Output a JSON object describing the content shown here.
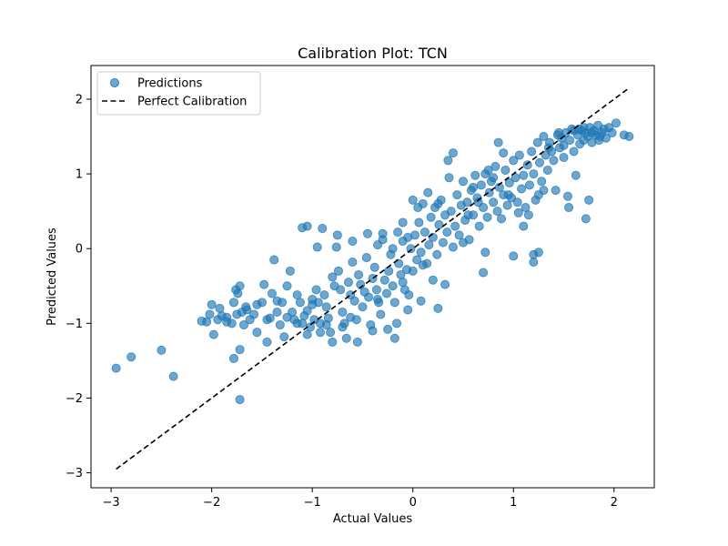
{
  "chart_data": {
    "type": "scatter",
    "title": "Calibration Plot: TCN",
    "xlabel": "Actual Values",
    "ylabel": "Predicted Values",
    "xlim": [
      -3.2,
      2.4
    ],
    "ylim": [
      -3.2,
      2.45
    ],
    "xticks": [
      -3,
      -2,
      -1,
      0,
      1,
      2
    ],
    "yticks": [
      -3,
      -2,
      -1,
      0,
      1,
      2
    ],
    "xtick_labels": [
      "−3",
      "−2",
      "−1",
      "0",
      "1",
      "2"
    ],
    "ytick_labels": [
      "−3",
      "−2",
      "−1",
      "0",
      "1",
      "2"
    ],
    "grid": false,
    "legend_position": "top-left",
    "legend": [
      "Predictions",
      "Perfect Calibration"
    ],
    "colors": {
      "points": "#1f77b4",
      "reference_line": "#000000"
    },
    "reference_line": {
      "name": "Perfect Calibration",
      "style": "dashed",
      "x": [
        -2.95,
        2.15
      ],
      "y": [
        -2.95,
        2.15
      ]
    },
    "series": [
      {
        "name": "Predictions",
        "points": [
          [
            -2.95,
            -1.6
          ],
          [
            -2.8,
            -1.45
          ],
          [
            -2.5,
            -1.36
          ],
          [
            -2.38,
            -1.71
          ],
          [
            -1.72,
            -2.02
          ],
          [
            -1.78,
            -1.47
          ],
          [
            -1.72,
            -1.35
          ],
          [
            -2.1,
            -0.97
          ],
          [
            -2.05,
            -0.98
          ],
          [
            -2.02,
            -0.88
          ],
          [
            -2.0,
            -0.75
          ],
          [
            -1.98,
            -1.15
          ],
          [
            -1.94,
            -0.95
          ],
          [
            -1.92,
            -0.8
          ],
          [
            -1.9,
            -0.9
          ],
          [
            -1.85,
            -0.92
          ],
          [
            -1.8,
            -1.0
          ],
          [
            -1.78,
            -0.72
          ],
          [
            -1.76,
            -0.55
          ],
          [
            -1.74,
            -0.6
          ],
          [
            -1.72,
            -0.5
          ],
          [
            -1.7,
            -0.85
          ],
          [
            -1.68,
            -1.02
          ],
          [
            -1.66,
            -0.78
          ],
          [
            -1.62,
            -0.95
          ],
          [
            -1.58,
            -0.88
          ],
          [
            -1.55,
            -1.12
          ],
          [
            -1.5,
            -0.72
          ],
          [
            -1.48,
            -0.48
          ],
          [
            -1.45,
            -1.25
          ],
          [
            -1.42,
            -0.93
          ],
          [
            -1.4,
            -0.6
          ],
          [
            -1.38,
            -0.15
          ],
          [
            -1.35,
            -0.7
          ],
          [
            -1.32,
            -1.02
          ],
          [
            -1.3,
            -0.72
          ],
          [
            -1.28,
            -1.18
          ],
          [
            -1.25,
            -0.5
          ],
          [
            -1.22,
            -0.3
          ],
          [
            -1.2,
            -0.85
          ],
          [
            -1.18,
            -0.95
          ],
          [
            -1.15,
            -0.62
          ],
          [
            -1.12,
            -0.72
          ],
          [
            -1.1,
            -1.0
          ],
          [
            -1.08,
            -0.9
          ],
          [
            -1.05,
            -0.83
          ],
          [
            -1.02,
            -1.05
          ],
          [
            -1.0,
            -0.68
          ],
          [
            -0.98,
            -0.95
          ],
          [
            -0.96,
            -0.55
          ],
          [
            -0.94,
            -0.72
          ],
          [
            -0.92,
            -1.0
          ],
          [
            -0.9,
            0.27
          ],
          [
            -0.88,
            -0.62
          ],
          [
            -0.86,
            -0.78
          ],
          [
            -0.84,
            -0.93
          ],
          [
            -0.82,
            -1.12
          ],
          [
            -0.8,
            -0.38
          ],
          [
            -0.78,
            -0.5
          ],
          [
            -0.76,
            0.02
          ],
          [
            -0.74,
            -0.3
          ],
          [
            -0.72,
            -0.55
          ],
          [
            -0.7,
            -0.85
          ],
          [
            -0.68,
            -1.0
          ],
          [
            -0.66,
            -1.2
          ],
          [
            -0.64,
            -0.45
          ],
          [
            -0.62,
            -0.62
          ],
          [
            -0.6,
            -0.18
          ],
          [
            -0.58,
            -0.7
          ],
          [
            -0.56,
            -0.95
          ],
          [
            -0.54,
            -0.35
          ],
          [
            -0.52,
            -0.48
          ],
          [
            -0.5,
            -0.78
          ],
          [
            -0.48,
            -0.58
          ],
          [
            -0.46,
            -0.12
          ],
          [
            -0.44,
            -0.65
          ],
          [
            -0.42,
            -1.02
          ],
          [
            -0.4,
            -0.4
          ],
          [
            -0.38,
            -0.25
          ],
          [
            -0.36,
            -0.55
          ],
          [
            -0.34,
            -0.72
          ],
          [
            -0.32,
            -0.88
          ],
          [
            -0.3,
            0.2
          ],
          [
            -0.28,
            -0.42
          ],
          [
            -0.26,
            -0.6
          ],
          [
            -0.24,
            -0.3
          ],
          [
            -0.22,
            -0.08
          ],
          [
            -0.2,
            -0.5
          ],
          [
            -0.18,
            -0.72
          ],
          [
            -0.16,
            -1.0
          ],
          [
            -0.14,
            -0.2
          ],
          [
            -0.12,
            -0.35
          ],
          [
            -0.1,
            0.1
          ],
          [
            -0.08,
            -0.55
          ],
          [
            -0.06,
            -0.28
          ],
          [
            -0.04,
            -0.62
          ],
          [
            -0.02,
            0.0
          ],
          [
            0.0,
            -0.3
          ],
          [
            0.02,
            0.18
          ],
          [
            0.04,
            -0.15
          ],
          [
            0.06,
            0.35
          ],
          [
            0.08,
            -0.05
          ],
          [
            0.1,
            0.6
          ],
          [
            0.12,
            0.22
          ],
          [
            0.14,
            -0.2
          ],
          [
            0.16,
            0.05
          ],
          [
            0.18,
            0.42
          ],
          [
            0.2,
            0.15
          ],
          [
            0.22,
            0.55
          ],
          [
            0.24,
            -0.08
          ],
          [
            0.26,
            0.32
          ],
          [
            0.28,
            0.65
          ],
          [
            0.3,
            0.08
          ],
          [
            0.32,
            0.45
          ],
          [
            0.34,
            0.22
          ],
          [
            0.36,
            0.95
          ],
          [
            0.38,
            0.5
          ],
          [
            0.4,
            0.02
          ],
          [
            0.42,
            0.3
          ],
          [
            0.44,
            0.72
          ],
          [
            0.46,
            0.18
          ],
          [
            0.48,
            0.58
          ],
          [
            0.5,
            0.9
          ],
          [
            0.52,
            0.38
          ],
          [
            0.54,
            0.62
          ],
          [
            0.56,
            0.12
          ],
          [
            0.58,
            0.78
          ],
          [
            0.6,
            0.45
          ],
          [
            0.62,
            0.98
          ],
          [
            0.64,
            0.68
          ],
          [
            0.66,
            0.3
          ],
          [
            0.68,
            0.85
          ],
          [
            0.7,
            0.55
          ],
          [
            0.72,
            1.0
          ],
          [
            0.74,
            0.42
          ],
          [
            0.76,
            0.75
          ],
          [
            0.78,
            0.9
          ],
          [
            0.8,
            0.62
          ],
          [
            0.82,
            1.1
          ],
          [
            0.84,
            0.5
          ],
          [
            0.86,
            0.82
          ],
          [
            0.88,
            0.4
          ],
          [
            0.9,
            0.72
          ],
          [
            0.92,
            1.05
          ],
          [
            0.94,
            0.58
          ],
          [
            0.96,
            0.88
          ],
          [
            0.98,
            0.68
          ],
          [
            1.0,
            1.18
          ],
          [
            1.02,
            0.95
          ],
          [
            1.04,
            0.62
          ],
          [
            1.06,
            1.25
          ],
          [
            1.08,
            0.8
          ],
          [
            1.1,
            0.98
          ],
          [
            1.12,
            0.55
          ],
          [
            1.14,
            1.12
          ],
          [
            1.16,
            0.85
          ],
          [
            1.18,
            1.3
          ],
          [
            1.2,
            1.0
          ],
          [
            1.22,
            0.65
          ],
          [
            1.24,
            1.42
          ],
          [
            1.26,
            1.15
          ],
          [
            1.28,
            0.9
          ],
          [
            1.3,
            1.5
          ],
          [
            1.32,
            1.25
          ],
          [
            1.34,
            1.05
          ],
          [
            1.36,
            1.42
          ],
          [
            1.38,
            1.3
          ],
          [
            1.4,
            1.18
          ],
          [
            1.42,
            0.78
          ],
          [
            1.44,
            1.52
          ],
          [
            1.46,
            1.35
          ],
          [
            1.48,
            1.48
          ],
          [
            1.5,
            1.22
          ],
          [
            1.52,
            1.55
          ],
          [
            1.54,
            0.7
          ],
          [
            1.56,
            1.45
          ],
          [
            1.58,
            1.6
          ],
          [
            1.6,
            1.3
          ],
          [
            1.62,
            0.98
          ],
          [
            1.64,
            1.52
          ],
          [
            1.66,
            1.4
          ],
          [
            1.68,
            1.58
          ],
          [
            1.7,
            1.45
          ],
          [
            1.72,
            1.55
          ],
          [
            1.74,
            1.5
          ],
          [
            1.76,
            1.62
          ],
          [
            1.78,
            1.42
          ],
          [
            1.8,
            1.58
          ],
          [
            1.82,
            1.52
          ],
          [
            1.84,
            1.65
          ],
          [
            1.86,
            1.5
          ],
          [
            1.88,
            1.55
          ],
          [
            1.9,
            1.6
          ],
          [
            1.92,
            1.48
          ],
          [
            1.95,
            1.62
          ],
          [
            1.98,
            1.55
          ],
          [
            2.02,
            1.68
          ],
          [
            2.1,
            1.52
          ],
          [
            2.15,
            1.5
          ],
          [
            1.72,
            0.4
          ],
          [
            1.75,
            0.65
          ],
          [
            1.2,
            -0.08
          ],
          [
            1.25,
            -0.05
          ],
          [
            1.2,
            -0.18
          ],
          [
            1.0,
            -0.1
          ],
          [
            0.7,
            -0.32
          ],
          [
            0.72,
            -0.05
          ],
          [
            0.5,
            0.08
          ],
          [
            0.32,
            -0.48
          ],
          [
            0.25,
            -0.8
          ],
          [
            0.2,
            -0.42
          ],
          [
            0.1,
            -0.22
          ],
          [
            0.08,
            -0.7
          ],
          [
            -0.05,
            -0.82
          ],
          [
            -0.1,
            -0.45
          ],
          [
            -0.18,
            -1.2
          ],
          [
            -0.25,
            -1.08
          ],
          [
            -0.35,
            -0.68
          ],
          [
            -0.4,
            -1.1
          ],
          [
            -0.55,
            -1.25
          ],
          [
            -0.62,
            -0.92
          ],
          [
            -0.7,
            -1.05
          ],
          [
            -0.8,
            -1.25
          ],
          [
            -0.86,
            -1.02
          ],
          [
            -0.92,
            -1.12
          ],
          [
            -1.0,
            -0.75
          ],
          [
            -1.05,
            -1.15
          ],
          [
            -1.15,
            -1.0
          ],
          [
            -1.25,
            -0.92
          ],
          [
            -1.35,
            -0.85
          ],
          [
            -1.45,
            -0.95
          ],
          [
            -1.55,
            -0.75
          ],
          [
            -1.65,
            -0.82
          ],
          [
            -1.75,
            -0.88
          ],
          [
            -1.85,
            -0.98
          ],
          [
            -1.1,
            0.28
          ],
          [
            -1.05,
            0.3
          ],
          [
            -0.95,
            0.02
          ],
          [
            -0.75,
            0.18
          ],
          [
            -0.6,
            0.1
          ],
          [
            -0.45,
            0.2
          ],
          [
            -0.35,
            0.05
          ],
          [
            -0.3,
            0.12
          ],
          [
            -0.2,
            0.0
          ],
          [
            -0.15,
            0.22
          ],
          [
            -0.1,
            0.35
          ],
          [
            -0.05,
            0.15
          ],
          [
            0.0,
            0.65
          ],
          [
            0.05,
            0.55
          ],
          [
            0.15,
            0.75
          ],
          [
            0.25,
            0.6
          ],
          [
            0.35,
            1.18
          ],
          [
            0.4,
            1.28
          ],
          [
            0.55,
            0.45
          ],
          [
            0.6,
            0.82
          ],
          [
            0.65,
            0.62
          ],
          [
            0.75,
            1.05
          ],
          [
            0.8,
            0.95
          ],
          [
            0.85,
            1.42
          ],
          [
            0.9,
            1.28
          ],
          [
            0.95,
            0.72
          ],
          [
            1.05,
            0.48
          ],
          [
            1.1,
            0.3
          ],
          [
            1.15,
            0.45
          ],
          [
            1.25,
            0.72
          ],
          [
            1.3,
            0.78
          ],
          [
            1.35,
            1.35
          ],
          [
            1.45,
            1.55
          ],
          [
            1.5,
            1.38
          ],
          [
            1.55,
            0.55
          ],
          [
            1.6,
            1.58
          ],
          [
            1.65,
            1.6
          ],
          [
            1.7,
            1.62
          ],
          [
            1.78,
            1.55
          ],
          [
            1.85,
            1.45
          ]
        ]
      }
    ]
  }
}
